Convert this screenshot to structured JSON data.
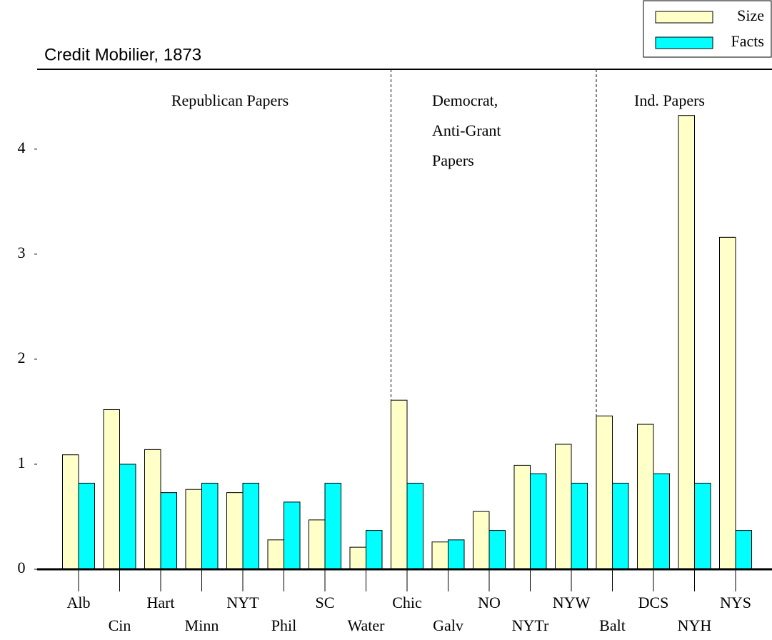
{
  "chart_data": {
    "type": "bar",
    "title": "Credit Mobilier, 1873",
    "categories": [
      "Alb",
      "Cin",
      "Hart",
      "Minn",
      "NYT",
      "Phil",
      "SC",
      "Water",
      "Chic",
      "Galv",
      "NO",
      "NYTr",
      "NYW",
      "Balt",
      "DCS",
      "NYH",
      "NYS"
    ],
    "series": [
      {
        "name": "Size",
        "color": "#ffffc8",
        "values": [
          1.09,
          1.52,
          1.14,
          0.76,
          0.73,
          0.28,
          0.47,
          0.21,
          1.61,
          0.26,
          0.55,
          0.99,
          1.19,
          1.46,
          1.38,
          4.32,
          3.16
        ]
      },
      {
        "name": "Facts",
        "color": "#00ffff",
        "values": [
          0.82,
          1.0,
          0.73,
          0.82,
          0.82,
          0.64,
          0.82,
          0.37,
          0.82,
          0.28,
          0.37,
          0.91,
          0.82,
          0.82,
          0.91,
          0.82,
          0.37
        ]
      }
    ],
    "annotations": [
      [
        "Republican Papers"
      ],
      [
        "Democrat,",
        "Anti-Grant",
        "Papers"
      ],
      [
        "Ind. Papers"
      ]
    ],
    "ylim": [
      0,
      4.76
    ],
    "yticks": [
      0,
      1,
      2,
      3,
      4
    ],
    "legend": "top-right"
  }
}
